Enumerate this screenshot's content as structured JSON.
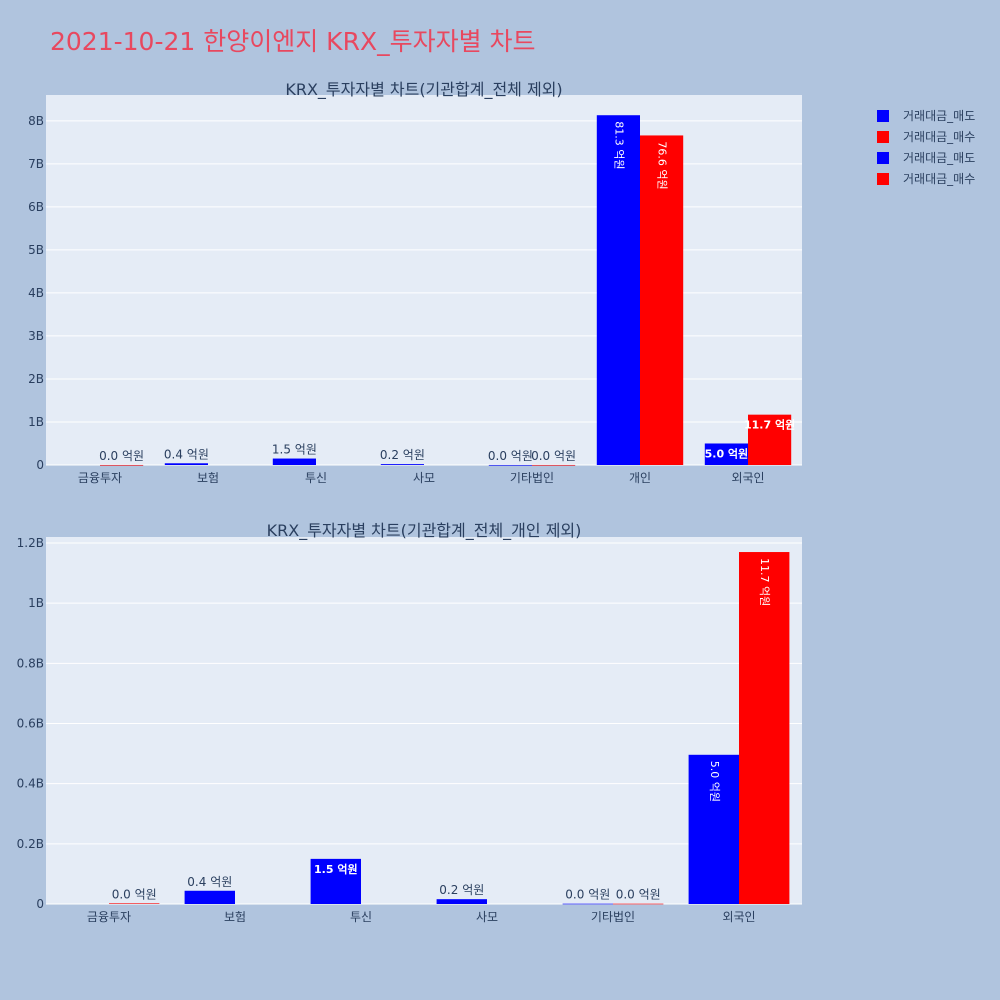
{
  "page": {
    "title": "2021-10-21 한양이엔지 KRX_투자자별 차트"
  },
  "colors": {
    "sell": "#0000ff",
    "buy": "#ff0000",
    "plot_bg": "#e5ecf6",
    "paper_bg": "#b0c4de"
  },
  "legend": {
    "items": [
      {
        "name": "거래대금_매도",
        "color": "#0000ff"
      },
      {
        "name": "거래대금_매수",
        "color": "#ff0000"
      },
      {
        "name": "거래대금_매도",
        "color": "#0000ff"
      },
      {
        "name": "거래대금_매수",
        "color": "#ff0000"
      }
    ]
  },
  "chart_data": [
    {
      "type": "bar",
      "title": "KRX_투자자별 차트(기관합계_전체 제외)",
      "categories": [
        "금융투자",
        "보험",
        "투신",
        "사모",
        "기타법인",
        "개인",
        "외국인"
      ],
      "ylim": [
        0,
        8600000000
      ],
      "yticks": [
        0,
        1000000000,
        2000000000,
        3000000000,
        4000000000,
        5000000000,
        6000000000,
        7000000000,
        8000000000
      ],
      "ytick_labels": [
        "0",
        "1B",
        "2B",
        "3B",
        "4B",
        "5B",
        "6B",
        "7B",
        "8B"
      ],
      "grid": true,
      "series": [
        {
          "name": "거래대금_매도",
          "color": "#0000ff",
          "values": [
            0,
            40000000,
            150000000,
            20000000,
            1000000,
            8130000000,
            500000000
          ],
          "labels": [
            "",
            "0.4 억원",
            "1.5 억원",
            "0.2 억원",
            "0.0 억원",
            "81.3 억원",
            "5.0 억원"
          ]
        },
        {
          "name": "거래대금_매수",
          "color": "#ff0000",
          "values": [
            1000000,
            0,
            0,
            0,
            1000000,
            7660000000,
            1170000000
          ],
          "labels": [
            "0.0 억원",
            "",
            "",
            "",
            "0.0 억원",
            "76.6 억원",
            "11.7 억원"
          ]
        }
      ]
    },
    {
      "type": "bar",
      "title": "KRX_투자자별 차트(기관합계_전체_개인 제외)",
      "categories": [
        "금융투자",
        "보험",
        "투신",
        "사모",
        "기타법인",
        "외국인"
      ],
      "ylim": [
        0,
        1220000000
      ],
      "yticks": [
        0,
        200000000,
        400000000,
        600000000,
        800000000,
        1000000000,
        1200000000
      ],
      "ytick_labels": [
        "0",
        "0.2B",
        "0.4B",
        "0.6B",
        "0.8B",
        "1B",
        "1.2B"
      ],
      "grid": true,
      "series": [
        {
          "name": "거래대금_매도",
          "color": "#0000ff",
          "values": [
            0,
            44000000,
            150000000,
            16000000,
            1000000,
            496000000
          ],
          "labels": [
            "",
            "0.4 억원",
            "1.5 억원",
            "0.2 억원",
            "0.0 억원",
            "5.0 억원"
          ]
        },
        {
          "name": "거래대금_매수",
          "color": "#ff0000",
          "values": [
            2000000,
            0,
            0,
            0,
            1000000,
            1170000000
          ],
          "labels": [
            "0.0 억원",
            "",
            "",
            "",
            "0.0 억원",
            "11.7 억원"
          ]
        }
      ]
    }
  ]
}
